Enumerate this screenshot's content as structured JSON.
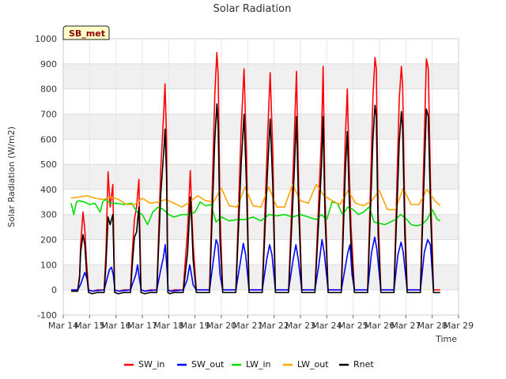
{
  "chart_data": {
    "type": "line",
    "title": "Solar Radiation",
    "xlabel": "Time",
    "ylabel": "Solar Radiation (W/m2)",
    "tag": "SB_met",
    "xlim": [
      14,
      29
    ],
    "ylim": [
      -100,
      1000
    ],
    "x_ticks": [
      14,
      15,
      16,
      17,
      18,
      19,
      20,
      21,
      22,
      23,
      24,
      25,
      26,
      27,
      28,
      29
    ],
    "x_tick_labels": [
      "Mar 14",
      "Mar 15",
      "Mar 16",
      "Mar 17",
      "Mar 18",
      "Mar 19",
      "Mar 20",
      "Mar 21",
      "Mar 22",
      "Mar 23",
      "Mar 24",
      "Mar 25",
      "Mar 26",
      "Mar 27",
      "Mar 28",
      "Mar 29"
    ],
    "y_ticks": [
      -100,
      0,
      100,
      200,
      300,
      400,
      500,
      600,
      700,
      800,
      900,
      1000
    ],
    "grid": true,
    "legend_position": "bottom",
    "series_colors": {
      "SW_in": "#ff0000",
      "SW_out": "#0000ff",
      "LW_in": "#00dd00",
      "LW_out": "#ffa500",
      "Rnet": "#000000"
    },
    "series": [
      {
        "name": "SW_in",
        "x": [
          14.3,
          14.55,
          14.62,
          14.66,
          14.75,
          14.82,
          14.88,
          14.96,
          15.1,
          15.3,
          15.55,
          15.62,
          15.7,
          15.78,
          15.88,
          15.95,
          16.1,
          16.3,
          16.55,
          16.62,
          16.7,
          16.78,
          16.87,
          16.95,
          17.1,
          17.3,
          17.55,
          17.7,
          17.82,
          17.86,
          17.92,
          17.97,
          18.05,
          18.2,
          18.3,
          18.55,
          18.72,
          18.82,
          18.88,
          18.93,
          19.05,
          19.3,
          19.55,
          19.75,
          19.83,
          19.88,
          19.95,
          20.05,
          20.3,
          20.55,
          20.75,
          20.86,
          20.95,
          21.05,
          21.3,
          21.55,
          21.75,
          21.85,
          21.95,
          22.05,
          22.3,
          22.55,
          22.75,
          22.85,
          22.93,
          23.05,
          23.3,
          23.55,
          23.72,
          23.8,
          23.86,
          23.93,
          24.05,
          24.3,
          24.55,
          24.7,
          24.78,
          24.85,
          24.92,
          25.05,
          25.3,
          25.55,
          25.75,
          25.83,
          25.88,
          25.95,
          26.05,
          26.3,
          26.55,
          26.75,
          26.83,
          26.88,
          26.96,
          27.05,
          27.3,
          27.55,
          27.72,
          27.78,
          27.85,
          27.95,
          28.05,
          28.3
        ],
        "y": [
          0,
          0,
          60,
          180,
          310,
          240,
          120,
          0,
          -5,
          0,
          0,
          150,
          470,
          330,
          420,
          0,
          -5,
          0,
          0,
          150,
          280,
          330,
          440,
          0,
          -5,
          0,
          0,
          480,
          720,
          820,
          600,
          0,
          -5,
          0,
          0,
          0,
          240,
          475,
          300,
          180,
          0,
          0,
          0,
          780,
          945,
          850,
          300,
          0,
          0,
          0,
          640,
          880,
          550,
          0,
          0,
          0,
          600,
          865,
          550,
          0,
          0,
          0,
          560,
          870,
          420,
          0,
          0,
          0,
          420,
          620,
          890,
          380,
          0,
          0,
          0,
          600,
          800,
          480,
          250,
          0,
          0,
          0,
          770,
          925,
          880,
          300,
          0,
          0,
          0,
          760,
          890,
          810,
          300,
          0,
          0,
          0,
          680,
          920,
          880,
          350,
          0,
          0
        ]
      },
      {
        "name": "SW_out",
        "x": [
          14.3,
          14.55,
          14.65,
          14.75,
          14.82,
          14.9,
          14.96,
          15.1,
          15.55,
          15.65,
          15.75,
          15.83,
          15.9,
          15.96,
          16.1,
          16.55,
          16.65,
          16.75,
          16.82,
          16.88,
          16.96,
          17.1,
          17.55,
          17.7,
          17.8,
          17.87,
          17.93,
          17.98,
          18.1,
          18.55,
          18.7,
          18.8,
          18.85,
          18.93,
          19.05,
          19.55,
          19.7,
          19.8,
          19.87,
          19.95,
          20.05,
          20.55,
          20.72,
          20.83,
          20.92,
          21.05,
          21.55,
          21.72,
          21.83,
          21.92,
          22.05,
          22.55,
          22.72,
          22.83,
          22.92,
          23.05,
          23.55,
          23.7,
          23.82,
          23.9,
          24.05,
          24.55,
          24.7,
          24.8,
          24.88,
          24.96,
          25.05,
          25.55,
          25.7,
          25.82,
          25.9,
          26.05,
          26.55,
          26.7,
          26.82,
          26.9,
          27.05,
          27.55,
          27.7,
          27.83,
          27.93,
          28.05
        ],
        "y": [
          0,
          0,
          20,
          50,
          70,
          45,
          0,
          -5,
          0,
          40,
          80,
          90,
          60,
          0,
          -5,
          0,
          30,
          60,
          100,
          50,
          0,
          -5,
          0,
          80,
          130,
          180,
          90,
          0,
          -5,
          0,
          40,
          100,
          70,
          20,
          0,
          0,
          120,
          200,
          180,
          60,
          0,
          0,
          110,
          185,
          140,
          0,
          0,
          120,
          180,
          140,
          0,
          0,
          120,
          180,
          120,
          0,
          0,
          100,
          200,
          150,
          0,
          0,
          90,
          150,
          180,
          60,
          0,
          0,
          150,
          210,
          160,
          0,
          0,
          140,
          190,
          150,
          0,
          0,
          150,
          200,
          180,
          0
        ]
      },
      {
        "name": "LW_in",
        "x": [
          14.3,
          14.4,
          14.5,
          14.6,
          14.8,
          15.0,
          15.2,
          15.4,
          15.5,
          15.6,
          15.8,
          16.0,
          16.3,
          16.6,
          16.8,
          17.0,
          17.2,
          17.4,
          17.6,
          17.8,
          18.0,
          18.2,
          18.5,
          18.8,
          19.0,
          19.2,
          19.4,
          19.6,
          19.8,
          20.0,
          20.3,
          20.6,
          20.9,
          21.2,
          21.5,
          21.8,
          22.1,
          22.4,
          22.7,
          23.0,
          23.3,
          23.6,
          23.8,
          24.0,
          24.2,
          24.4,
          24.6,
          24.8,
          25.0,
          25.2,
          25.4,
          25.6,
          25.8,
          26.0,
          26.2,
          26.4,
          26.6,
          26.8,
          27.0,
          27.2,
          27.4,
          27.6,
          27.8,
          28.0,
          28.2,
          28.3
        ],
        "y": [
          345,
          300,
          350,
          355,
          350,
          340,
          345,
          310,
          350,
          360,
          345,
          345,
          340,
          345,
          310,
          300,
          260,
          310,
          330,
          320,
          300,
          290,
          300,
          300,
          310,
          350,
          335,
          340,
          270,
          290,
          275,
          280,
          280,
          290,
          275,
          300,
          295,
          300,
          290,
          300,
          290,
          280,
          300,
          280,
          350,
          345,
          300,
          330,
          320,
          300,
          310,
          330,
          270,
          265,
          260,
          270,
          280,
          300,
          285,
          260,
          255,
          260,
          280,
          320,
          280,
          275
        ]
      },
      {
        "name": "LW_out",
        "x": [
          14.3,
          14.6,
          14.9,
          15.2,
          15.5,
          15.8,
          16.1,
          16.4,
          16.7,
          17.0,
          17.3,
          17.6,
          17.9,
          18.2,
          18.5,
          18.8,
          19.1,
          19.4,
          19.7,
          20.0,
          20.3,
          20.6,
          20.9,
          21.2,
          21.5,
          21.8,
          22.1,
          22.4,
          22.7,
          23.0,
          23.3,
          23.6,
          23.9,
          24.2,
          24.5,
          24.8,
          25.1,
          25.4,
          25.7,
          26.0,
          26.3,
          26.6,
          26.9,
          27.2,
          27.5,
          27.8,
          28.1,
          28.3
        ],
        "y": [
          365,
          370,
          375,
          365,
          360,
          370,
          360,
          340,
          340,
          365,
          345,
          350,
          360,
          345,
          330,
          350,
          375,
          355,
          350,
          405,
          335,
          330,
          410,
          335,
          330,
          410,
          330,
          330,
          420,
          355,
          345,
          420,
          375,
          355,
          340,
          395,
          345,
          335,
          355,
          395,
          320,
          320,
          405,
          340,
          340,
          400,
          355,
          335
        ]
      },
      {
        "name": "Rnet",
        "x": [
          14.3,
          14.55,
          14.62,
          14.66,
          14.75,
          14.82,
          14.88,
          14.96,
          15.1,
          15.3,
          15.55,
          15.62,
          15.7,
          15.78,
          15.88,
          15.95,
          16.1,
          16.3,
          16.55,
          16.62,
          16.7,
          16.78,
          16.87,
          16.95,
          17.1,
          17.3,
          17.55,
          17.7,
          17.82,
          17.86,
          17.92,
          17.97,
          18.05,
          18.2,
          18.3,
          18.55,
          18.72,
          18.82,
          18.88,
          18.93,
          19.05,
          19.3,
          19.55,
          19.75,
          19.83,
          19.88,
          19.95,
          20.05,
          20.3,
          20.55,
          20.75,
          20.86,
          20.95,
          21.05,
          21.3,
          21.55,
          21.75,
          21.85,
          21.95,
          22.05,
          22.3,
          22.55,
          22.75,
          22.85,
          22.93,
          23.05,
          23.3,
          23.55,
          23.72,
          23.8,
          23.86,
          23.93,
          24.05,
          24.3,
          24.55,
          24.7,
          24.78,
          24.85,
          24.92,
          25.05,
          25.3,
          25.55,
          25.75,
          25.83,
          25.88,
          25.95,
          26.05,
          26.3,
          26.55,
          26.75,
          26.83,
          26.88,
          26.96,
          27.05,
          27.3,
          27.55,
          27.72,
          27.78,
          27.85,
          27.95,
          28.05,
          28.3
        ],
        "y": [
          -5,
          -5,
          50,
          150,
          220,
          180,
          80,
          -10,
          -15,
          -10,
          -10,
          100,
          290,
          260,
          300,
          -10,
          -15,
          -10,
          -10,
          100,
          210,
          230,
          330,
          -10,
          -15,
          -10,
          -10,
          380,
          560,
          640,
          450,
          -10,
          -15,
          -10,
          -10,
          -10,
          150,
          370,
          250,
          120,
          -10,
          -10,
          -10,
          600,
          740,
          650,
          200,
          -10,
          -10,
          -10,
          500,
          700,
          420,
          -10,
          -10,
          -10,
          470,
          680,
          420,
          -10,
          -10,
          -10,
          440,
          690,
          330,
          -10,
          -10,
          -10,
          330,
          500,
          690,
          300,
          -10,
          -10,
          -10,
          470,
          630,
          370,
          180,
          -10,
          -10,
          -10,
          600,
          735,
          690,
          220,
          -10,
          -10,
          -10,
          590,
          710,
          640,
          220,
          -10,
          -10,
          -10,
          530,
          720,
          690,
          270,
          -10,
          -10
        ]
      }
    ]
  }
}
